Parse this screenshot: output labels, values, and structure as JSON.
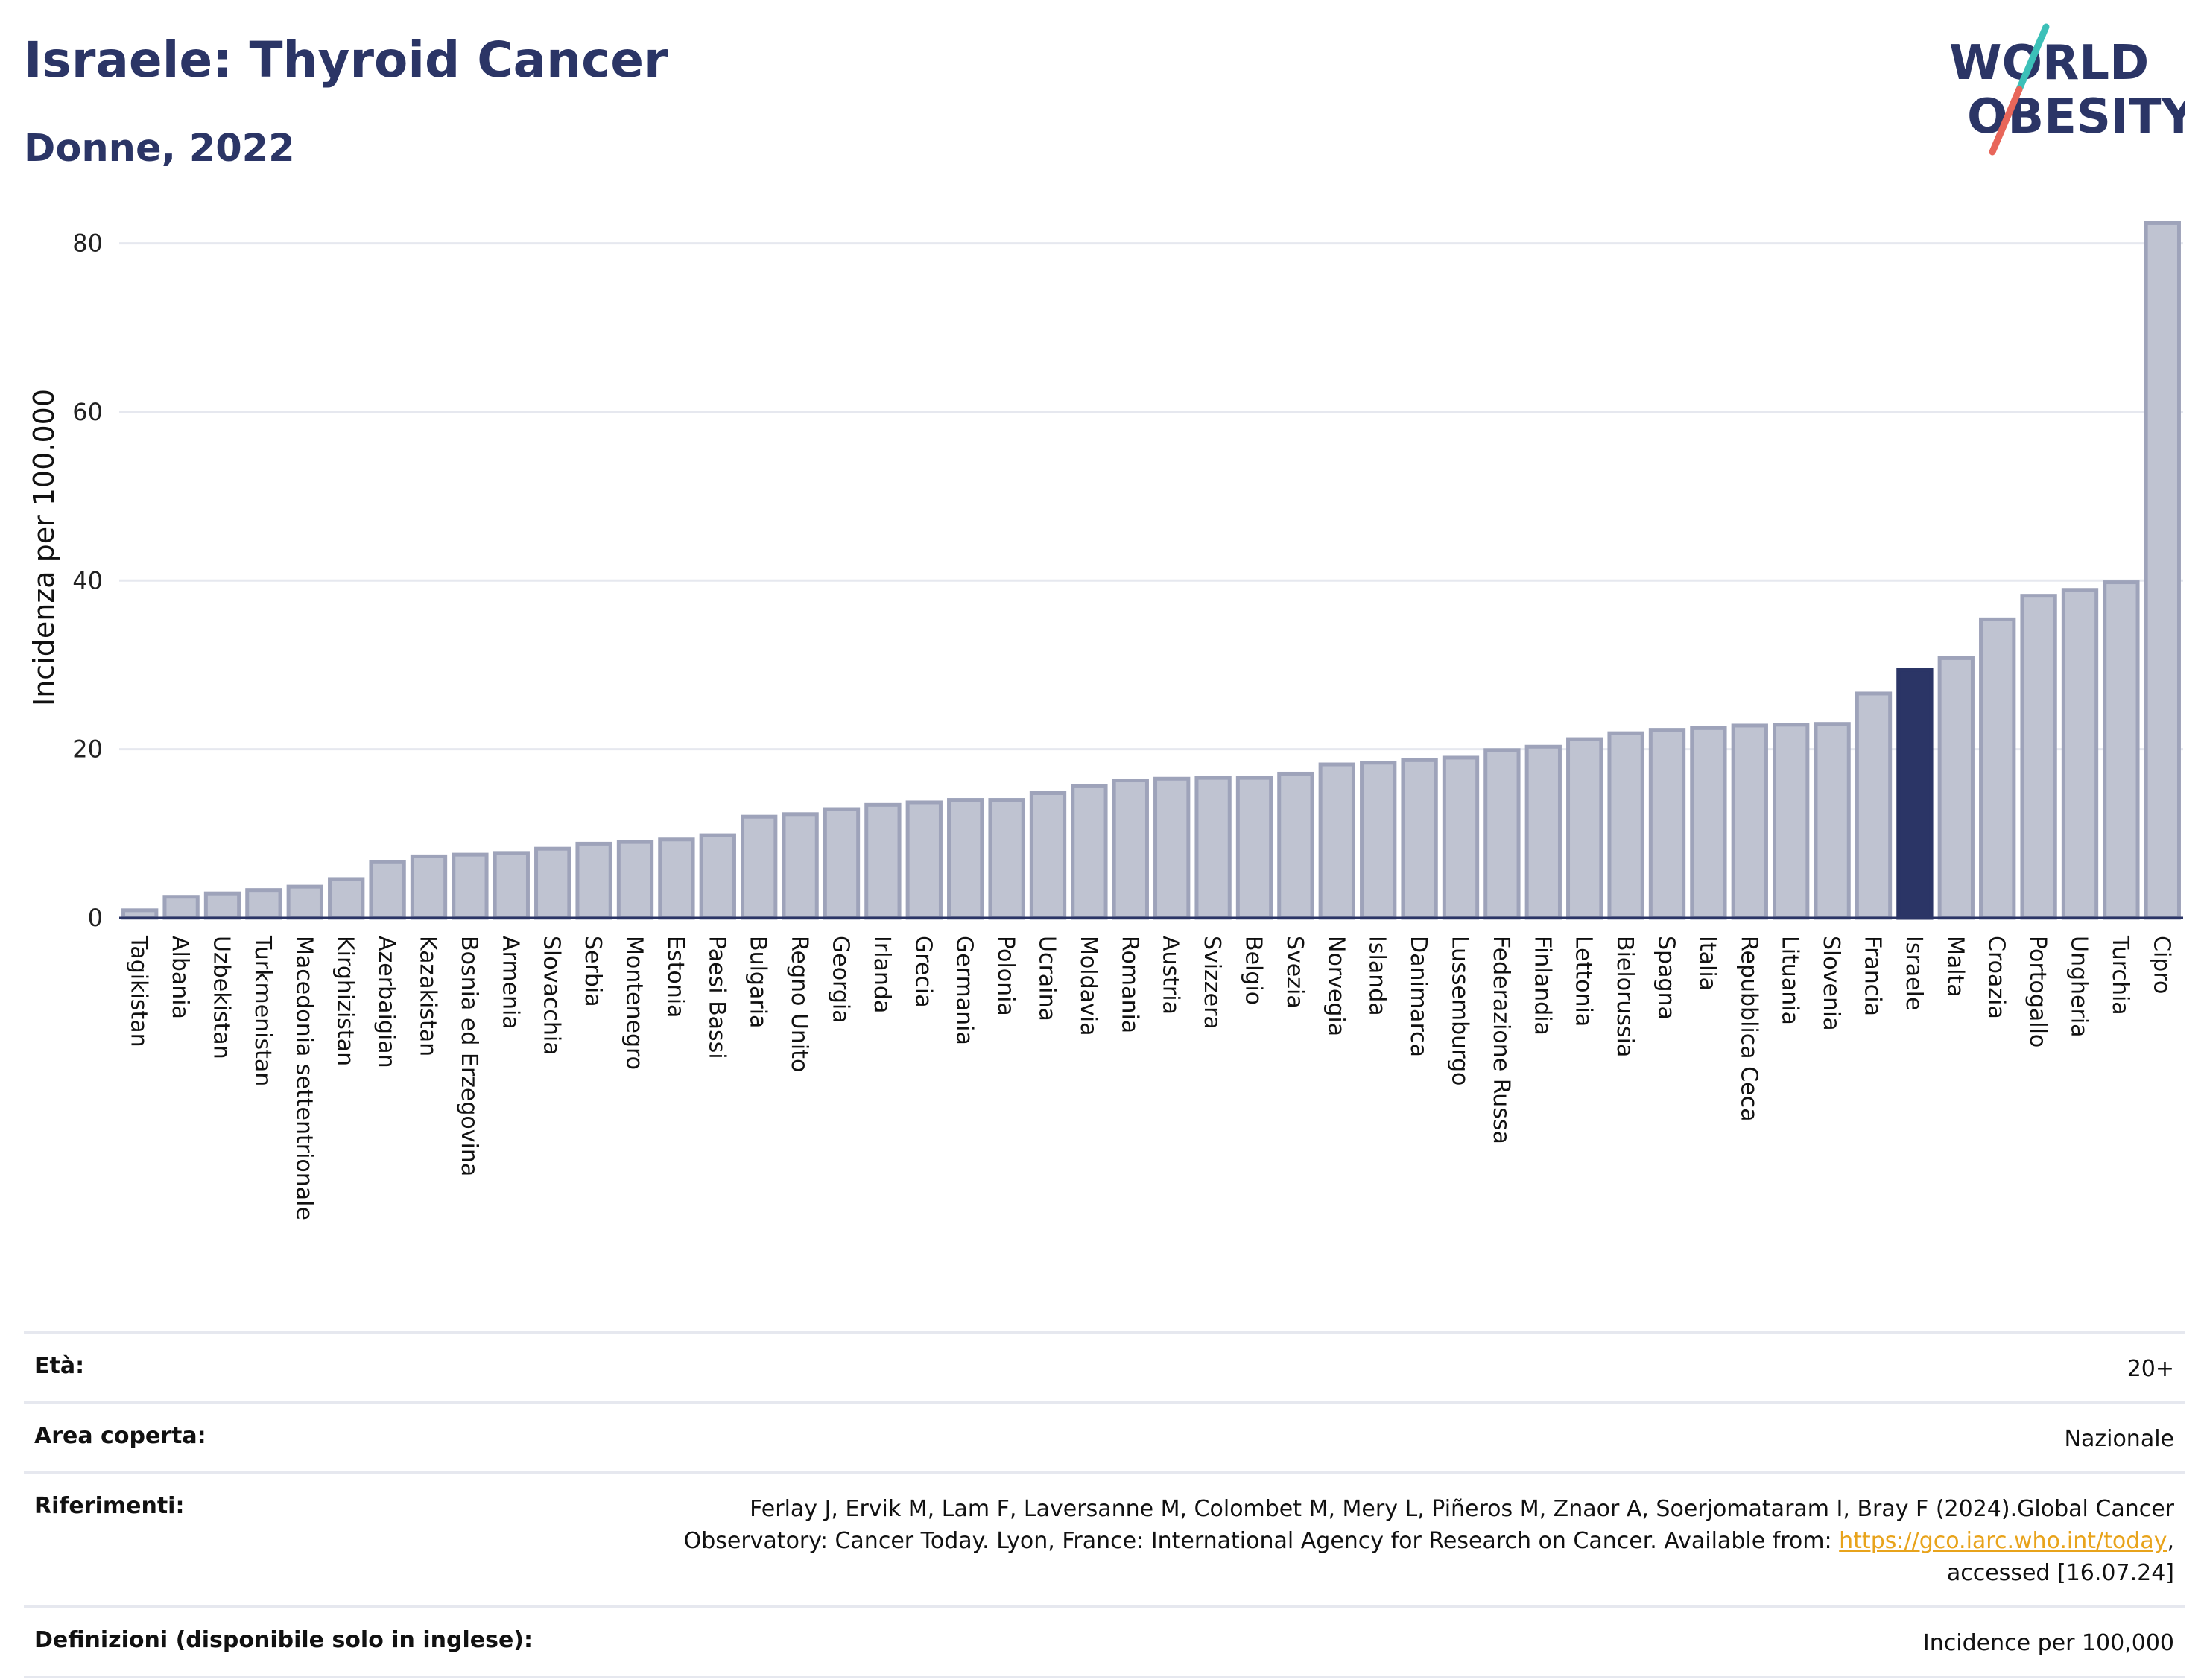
{
  "header": {
    "title": "Israele: Thyroid Cancer",
    "subtitle": "Donne, 2022"
  },
  "logo": {
    "line1": "WORLD",
    "line2": "OBESITY",
    "colors": {
      "text": "#2b3566",
      "slash_top": "#3cc0b8",
      "slash_bottom": "#e8665a"
    }
  },
  "colors": {
    "bar_fill": "#bfc3d1",
    "bar_stroke": "#9ea3ba",
    "highlight": "#2b3566",
    "grid": "#e6e8ef",
    "link": "#e8a31b"
  },
  "chart_data": {
    "type": "bar",
    "title": "Israele: Thyroid Cancer",
    "subtitle": "Donne, 2022",
    "xlabel": "",
    "ylabel": "Incidenza per 100.000",
    "ylim": [
      0,
      85
    ],
    "yticks": [
      0,
      20,
      40,
      60,
      80
    ],
    "grid": true,
    "highlight": "Israele",
    "categories": [
      "Tagikistan",
      "Albania",
      "Uzbekistan",
      "Turkmenistan",
      "Macedonia settentrionale",
      "Kirghizistan",
      "Azerbaigian",
      "Kazakistan",
      "Bosnia ed Erzegovina",
      "Armenia",
      "Slovacchia",
      "Serbia",
      "Montenegro",
      "Estonia",
      "Paesi Bassi",
      "Bulgaria",
      "Regno Unito",
      "Georgia",
      "Irlanda",
      "Grecia",
      "Germania",
      "Polonia",
      "Ucraina",
      "Moldavia",
      "Romania",
      "Austria",
      "Svizzera",
      "Belgio",
      "Svezia",
      "Norvegia",
      "Islanda",
      "Danimarca",
      "Lussemburgo",
      "Federazione Russa",
      "Finlandia",
      "Lettonia",
      "Bielorussia",
      "Spagna",
      "Italia",
      "Repubblica Ceca",
      "Lituania",
      "Slovenia",
      "Francia",
      "Israele",
      "Malta",
      "Croazia",
      "Portogallo",
      "Ungheria",
      "Turchia",
      "Cipro"
    ],
    "values": [
      0.9,
      2.5,
      2.9,
      3.3,
      3.7,
      4.6,
      6.6,
      7.3,
      7.5,
      7.7,
      8.2,
      8.8,
      9.0,
      9.3,
      9.8,
      12.0,
      12.3,
      12.9,
      13.4,
      13.7,
      14.0,
      14.0,
      14.8,
      15.6,
      16.3,
      16.5,
      16.6,
      16.6,
      17.1,
      18.2,
      18.4,
      18.7,
      19.0,
      19.9,
      20.3,
      21.2,
      21.9,
      22.3,
      22.5,
      22.8,
      22.9,
      23.0,
      26.6,
      29.4,
      30.8,
      35.4,
      38.2,
      38.9,
      39.8,
      82.4
    ]
  },
  "meta": {
    "age_label": "Età:",
    "age_value": "20+",
    "area_label": "Area coperta:",
    "area_value": "Nazionale",
    "refs_label": "Riferimenti:",
    "refs_line1": "Ferlay J, Ervik M, Lam F, Laversanne M, Colombet M, Mery L, Piñeros M, Znaor A, Soerjomataram I, Bray F (2024).Global Cancer",
    "refs_line2_pre": "Observatory: Cancer Today. Lyon, France: International Agency for Research on Cancer. Available from: ",
    "refs_link": "https://gco.iarc.who.int/today",
    "refs_line2_post": ",",
    "refs_line3": "accessed [16.07.24]",
    "defs_label": "Definizioni (disponibile solo in inglese):",
    "defs_value": "Incidence per 100,000"
  }
}
